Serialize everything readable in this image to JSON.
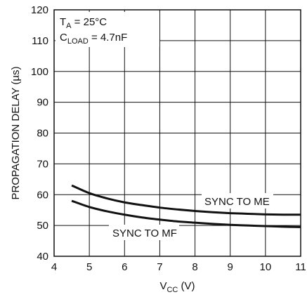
{
  "chart_data": {
    "type": "line",
    "xlabel": {
      "main": "V",
      "sub": "CC",
      "unit": " (V)"
    },
    "ylabel": "PROPAGATION DELAY (µs)",
    "xlim": [
      4,
      11
    ],
    "ylim": [
      40,
      120
    ],
    "x_ticks": [
      "4",
      "5",
      "6",
      "7",
      "8",
      "9",
      "10",
      "11"
    ],
    "y_ticks": [
      "40",
      "50",
      "60",
      "70",
      "80",
      "90",
      "100",
      "110",
      "120"
    ],
    "grid": true,
    "conditions": {
      "ta": {
        "main": "T",
        "sub": "A",
        "rest": " = 25°C"
      },
      "cload": {
        "main": "C",
        "sub": "LOAD",
        "rest": " = 4.7nF"
      }
    },
    "series": [
      {
        "name": "SYNC TO ME",
        "x": [
          4.5,
          5,
          5.5,
          6,
          6.5,
          7,
          7.5,
          8,
          8.5,
          9,
          9.5,
          10,
          10.5,
          11
        ],
        "y": [
          63,
          60.5,
          58.8,
          57.5,
          56.6,
          55.8,
          55.2,
          54.7,
          54.3,
          54.0,
          53.8,
          53.6,
          53.5,
          53.5
        ]
      },
      {
        "name": "SYNC TO MF",
        "x": [
          4.5,
          5,
          5.5,
          6,
          6.5,
          7,
          7.5,
          8,
          8.5,
          9,
          9.5,
          10,
          10.5,
          11
        ],
        "y": [
          58,
          56.0,
          54.6,
          53.5,
          52.6,
          51.9,
          51.3,
          50.9,
          50.5,
          50.2,
          50.0,
          49.8,
          49.6,
          49.5
        ]
      }
    ]
  }
}
